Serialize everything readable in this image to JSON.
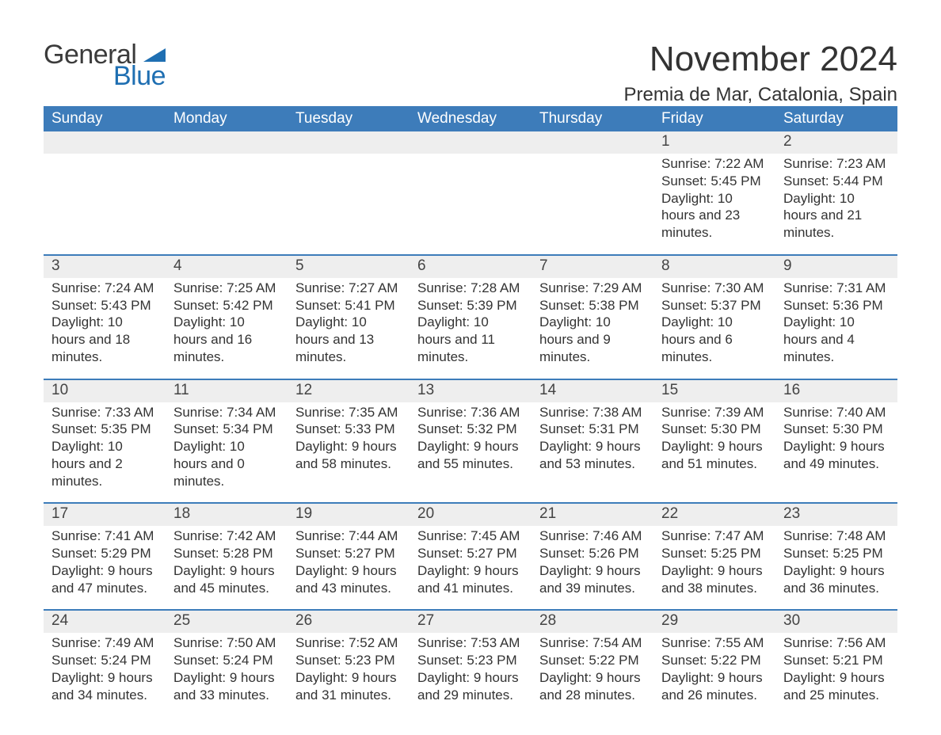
{
  "logo": {
    "text1": "General",
    "text2": "Blue"
  },
  "title": "November 2024",
  "subtitle": "Premia de Mar, Catalonia, Spain",
  "colors": {
    "header_bg": "#3d7cba",
    "header_text": "#ffffff",
    "week_border": "#3d7cba",
    "daynum_bg": "#eeeeee",
    "body_text": "#333333",
    "logo_blue": "#1f6fb2",
    "page_bg": "#ffffff"
  },
  "typography": {
    "title_fontsize": 44,
    "subtitle_fontsize": 24,
    "colhead_fontsize": 19,
    "daynum_fontsize": 19,
    "body_fontsize": 17,
    "logo_fontsize": 34
  },
  "layout": {
    "columns": 7,
    "week_rows": 5
  },
  "calendar": {
    "type": "table",
    "columns": [
      "Sunday",
      "Monday",
      "Tuesday",
      "Wednesday",
      "Thursday",
      "Friday",
      "Saturday"
    ],
    "weeks": [
      [
        null,
        null,
        null,
        null,
        null,
        {
          "day": "1",
          "sunrise": "7:22 AM",
          "sunset": "5:45 PM",
          "daylight": "10 hours and 23 minutes."
        },
        {
          "day": "2",
          "sunrise": "7:23 AM",
          "sunset": "5:44 PM",
          "daylight": "10 hours and 21 minutes."
        }
      ],
      [
        {
          "day": "3",
          "sunrise": "7:24 AM",
          "sunset": "5:43 PM",
          "daylight": "10 hours and 18 minutes."
        },
        {
          "day": "4",
          "sunrise": "7:25 AM",
          "sunset": "5:42 PM",
          "daylight": "10 hours and 16 minutes."
        },
        {
          "day": "5",
          "sunrise": "7:27 AM",
          "sunset": "5:41 PM",
          "daylight": "10 hours and 13 minutes."
        },
        {
          "day": "6",
          "sunrise": "7:28 AM",
          "sunset": "5:39 PM",
          "daylight": "10 hours and 11 minutes."
        },
        {
          "day": "7",
          "sunrise": "7:29 AM",
          "sunset": "5:38 PM",
          "daylight": "10 hours and 9 minutes."
        },
        {
          "day": "8",
          "sunrise": "7:30 AM",
          "sunset": "5:37 PM",
          "daylight": "10 hours and 6 minutes."
        },
        {
          "day": "9",
          "sunrise": "7:31 AM",
          "sunset": "5:36 PM",
          "daylight": "10 hours and 4 minutes."
        }
      ],
      [
        {
          "day": "10",
          "sunrise": "7:33 AM",
          "sunset": "5:35 PM",
          "daylight": "10 hours and 2 minutes."
        },
        {
          "day": "11",
          "sunrise": "7:34 AM",
          "sunset": "5:34 PM",
          "daylight": "10 hours and 0 minutes."
        },
        {
          "day": "12",
          "sunrise": "7:35 AM",
          "sunset": "5:33 PM",
          "daylight": "9 hours and 58 minutes."
        },
        {
          "day": "13",
          "sunrise": "7:36 AM",
          "sunset": "5:32 PM",
          "daylight": "9 hours and 55 minutes."
        },
        {
          "day": "14",
          "sunrise": "7:38 AM",
          "sunset": "5:31 PM",
          "daylight": "9 hours and 53 minutes."
        },
        {
          "day": "15",
          "sunrise": "7:39 AM",
          "sunset": "5:30 PM",
          "daylight": "9 hours and 51 minutes."
        },
        {
          "day": "16",
          "sunrise": "7:40 AM",
          "sunset": "5:30 PM",
          "daylight": "9 hours and 49 minutes."
        }
      ],
      [
        {
          "day": "17",
          "sunrise": "7:41 AM",
          "sunset": "5:29 PM",
          "daylight": "9 hours and 47 minutes."
        },
        {
          "day": "18",
          "sunrise": "7:42 AM",
          "sunset": "5:28 PM",
          "daylight": "9 hours and 45 minutes."
        },
        {
          "day": "19",
          "sunrise": "7:44 AM",
          "sunset": "5:27 PM",
          "daylight": "9 hours and 43 minutes."
        },
        {
          "day": "20",
          "sunrise": "7:45 AM",
          "sunset": "5:27 PM",
          "daylight": "9 hours and 41 minutes."
        },
        {
          "day": "21",
          "sunrise": "7:46 AM",
          "sunset": "5:26 PM",
          "daylight": "9 hours and 39 minutes."
        },
        {
          "day": "22",
          "sunrise": "7:47 AM",
          "sunset": "5:25 PM",
          "daylight": "9 hours and 38 minutes."
        },
        {
          "day": "23",
          "sunrise": "7:48 AM",
          "sunset": "5:25 PM",
          "daylight": "9 hours and 36 minutes."
        }
      ],
      [
        {
          "day": "24",
          "sunrise": "7:49 AM",
          "sunset": "5:24 PM",
          "daylight": "9 hours and 34 minutes."
        },
        {
          "day": "25",
          "sunrise": "7:50 AM",
          "sunset": "5:24 PM",
          "daylight": "9 hours and 33 minutes."
        },
        {
          "day": "26",
          "sunrise": "7:52 AM",
          "sunset": "5:23 PM",
          "daylight": "9 hours and 31 minutes."
        },
        {
          "day": "27",
          "sunrise": "7:53 AM",
          "sunset": "5:23 PM",
          "daylight": "9 hours and 29 minutes."
        },
        {
          "day": "28",
          "sunrise": "7:54 AM",
          "sunset": "5:22 PM",
          "daylight": "9 hours and 28 minutes."
        },
        {
          "day": "29",
          "sunrise": "7:55 AM",
          "sunset": "5:22 PM",
          "daylight": "9 hours and 26 minutes."
        },
        {
          "day": "30",
          "sunrise": "7:56 AM",
          "sunset": "5:21 PM",
          "daylight": "9 hours and 25 minutes."
        }
      ]
    ],
    "labels": {
      "sunrise": "Sunrise: ",
      "sunset": "Sunset: ",
      "daylight": "Daylight: "
    }
  }
}
